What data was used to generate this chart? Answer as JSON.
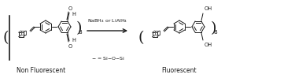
{
  "title": "",
  "background_color": "#ffffff",
  "text_color": "#000000",
  "line_color": "#1a1a1a",
  "fig_width": 3.75,
  "fig_height": 0.99,
  "dpi": 100,
  "label_non_fluorescent": "Non Fluorescent",
  "label_fluorescent": "Fluorescent",
  "label_reagent": "NaBH$_4$ or LiAlH$_4$",
  "label_legend": "$-$ = Si$-$O$-$Si",
  "subscript_8": "8",
  "font_size_labels": 5.5,
  "font_size_chem": 4.8,
  "font_size_small": 4.2
}
